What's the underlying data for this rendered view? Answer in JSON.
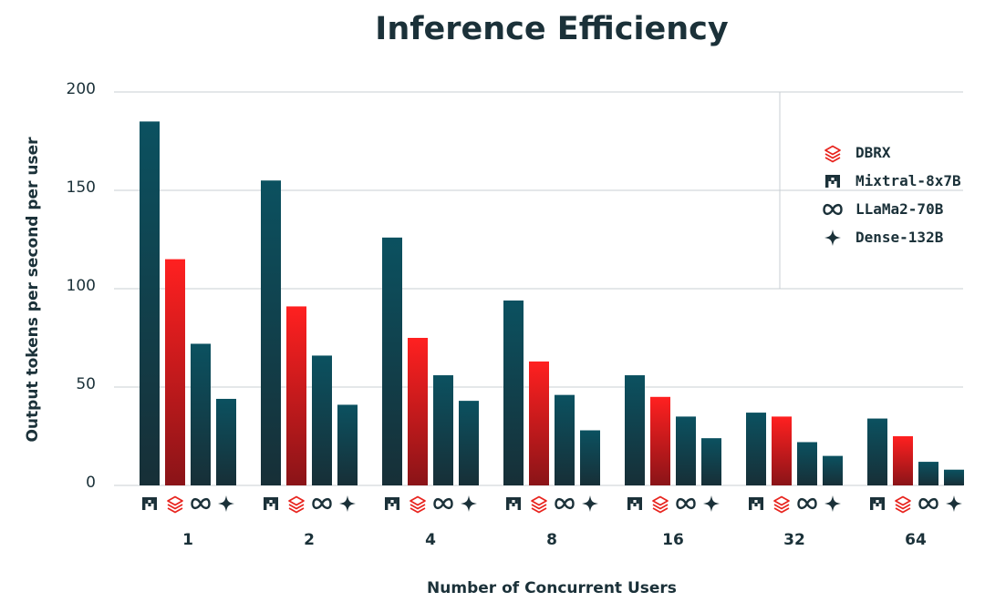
{
  "title": "Inference Efficiency",
  "chart_data": {
    "type": "bar",
    "title": "Inference Efficiency",
    "xlabel": "Number of Concurrent Users",
    "ylabel": "Output tokens per second per user",
    "ylim": [
      0,
      200
    ],
    "yticks": [
      0,
      50,
      100,
      150,
      200
    ],
    "grid": true,
    "legend_position": "top-right",
    "categories": [
      "1",
      "2",
      "4",
      "8",
      "16",
      "32",
      "64"
    ],
    "series": [
      {
        "name": "Mixtral-8x7B",
        "icon": "mistral-icon",
        "color": "#1b3139",
        "values": [
          185,
          155,
          126,
          94,
          56,
          37,
          34
        ]
      },
      {
        "name": "DBRX",
        "icon": "databricks-icon",
        "color": "#e8231d",
        "values": [
          115,
          91,
          75,
          63,
          45,
          35,
          25
        ]
      },
      {
        "name": "LLaMa2-70B",
        "icon": "meta-infinity-icon",
        "color": "#1b3139",
        "values": [
          72,
          66,
          56,
          46,
          35,
          22,
          12
        ]
      },
      {
        "name": "Dense-132B",
        "icon": "sparkle-star-icon",
        "color": "#1b3139",
        "values": [
          44,
          41,
          43,
          28,
          24,
          15,
          8
        ]
      }
    ],
    "legend_order": [
      "DBRX",
      "Mixtral-8x7B",
      "LLaMa2-70B",
      "Dense-132B"
    ]
  }
}
